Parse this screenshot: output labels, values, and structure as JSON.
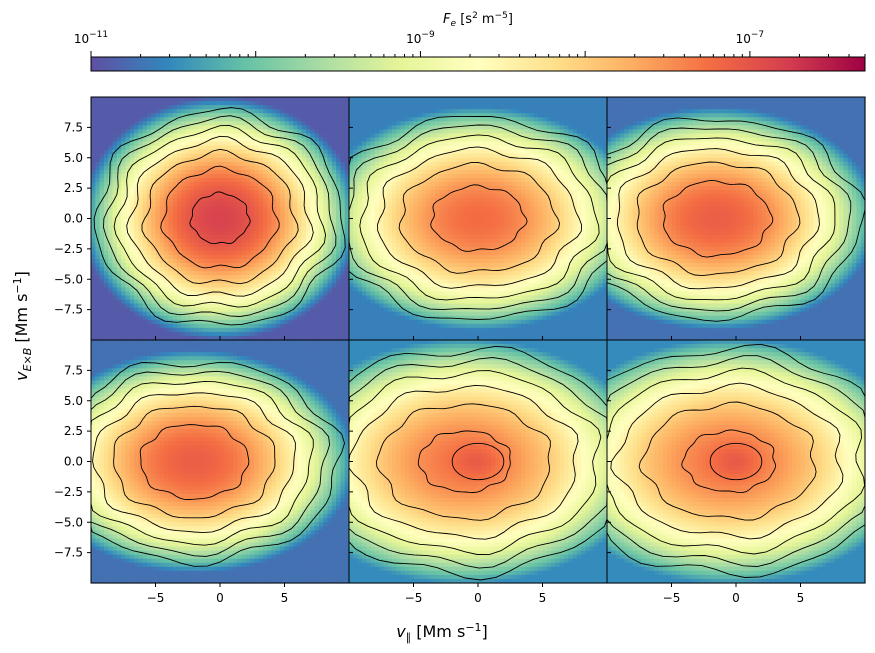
{
  "colorbar": {
    "label_main": "F",
    "label_sub": "e",
    "label_units_pre": " [s",
    "label_units_exp1": "2",
    "label_units_mid": " m",
    "label_units_exp2": "−5",
    "label_units_post": "]",
    "tick_base": "10",
    "ticks": [
      {
        "exp": "−11",
        "value": 1e-11
      },
      {
        "exp": "−9",
        "value": 1e-09
      },
      {
        "exp": "−7",
        "value": 1e-07
      }
    ],
    "range": [
      1e-11,
      5e-07
    ],
    "scale": "log",
    "colormap": "Spectral_r",
    "colors": [
      "#5e4fa2",
      "#3288bd",
      "#66c2a5",
      "#abdda4",
      "#e6f598",
      "#ffffbf",
      "#fee08b",
      "#fdae61",
      "#f46d43",
      "#d53e4f",
      "#9e0142"
    ]
  },
  "chart_data": {
    "type": "heatmap",
    "layout": "2x3 grid",
    "xlabel_main": "v",
    "xlabel_sub": "∥",
    "xlabel_units": " [Mm s",
    "xlabel_exp": "−1",
    "xlabel_close": "]",
    "ylabel_main": "v",
    "ylabel_sub": "E×B",
    "ylabel_units": " [Mm s",
    "ylabel_exp": "−1",
    "ylabel_close": "]",
    "xlim": [
      -10,
      10
    ],
    "ylim": [
      -10,
      10
    ],
    "xticks": [
      -5,
      0,
      5
    ],
    "xtick_labels": [
      "−5",
      "0",
      "5"
    ],
    "yticks": [
      7.5,
      5.0,
      2.5,
      0.0,
      -2.5,
      -5.0,
      -7.5
    ],
    "ytick_labels": [
      "7.5",
      "5.0",
      "2.5",
      "0.0",
      "−2.5",
      "−5.0",
      "−7.5"
    ],
    "contours": "black lines, roughly one per half-decade",
    "panels": [
      {
        "row": 1,
        "col": 1,
        "peak": 1.5e-07,
        "core_center_x": 0.0,
        "core_radius_x": 6.5,
        "core_radius_y": 6.0,
        "secondary_peak_x": null,
        "edge_density": 2e-11
      },
      {
        "row": 1,
        "col": 2,
        "peak": 6e-08,
        "core_center_x": 0.0,
        "core_radius_x": 7.5,
        "core_radius_y": 5.5,
        "secondary_peak_x": null,
        "edge_density": 4e-11
      },
      {
        "row": 1,
        "col": 3,
        "peak": 8e-08,
        "core_center_x": -1.5,
        "core_radius_x": 7.5,
        "core_radius_y": 5.5,
        "secondary_peak_x": null,
        "edge_density": 3e-11
      },
      {
        "row": 2,
        "col": 1,
        "peak": 8e-08,
        "core_center_x": -2.0,
        "core_radius_x": 7.5,
        "core_radius_y": 5.5,
        "secondary_peak_x": null,
        "edge_density": 3e-11
      },
      {
        "row": 2,
        "col": 2,
        "peak": 5e-08,
        "core_center_x": -1.0,
        "core_radius_x": 8.5,
        "core_radius_y": 6.0,
        "secondary_peak_x": 0.0,
        "edge_density": 5e-11
      },
      {
        "row": 2,
        "col": 3,
        "peak": 5e-08,
        "core_center_x": -0.5,
        "core_radius_x": 8.5,
        "core_radius_y": 6.0,
        "secondary_peak_x": 0.0,
        "edge_density": 5e-11
      }
    ]
  }
}
